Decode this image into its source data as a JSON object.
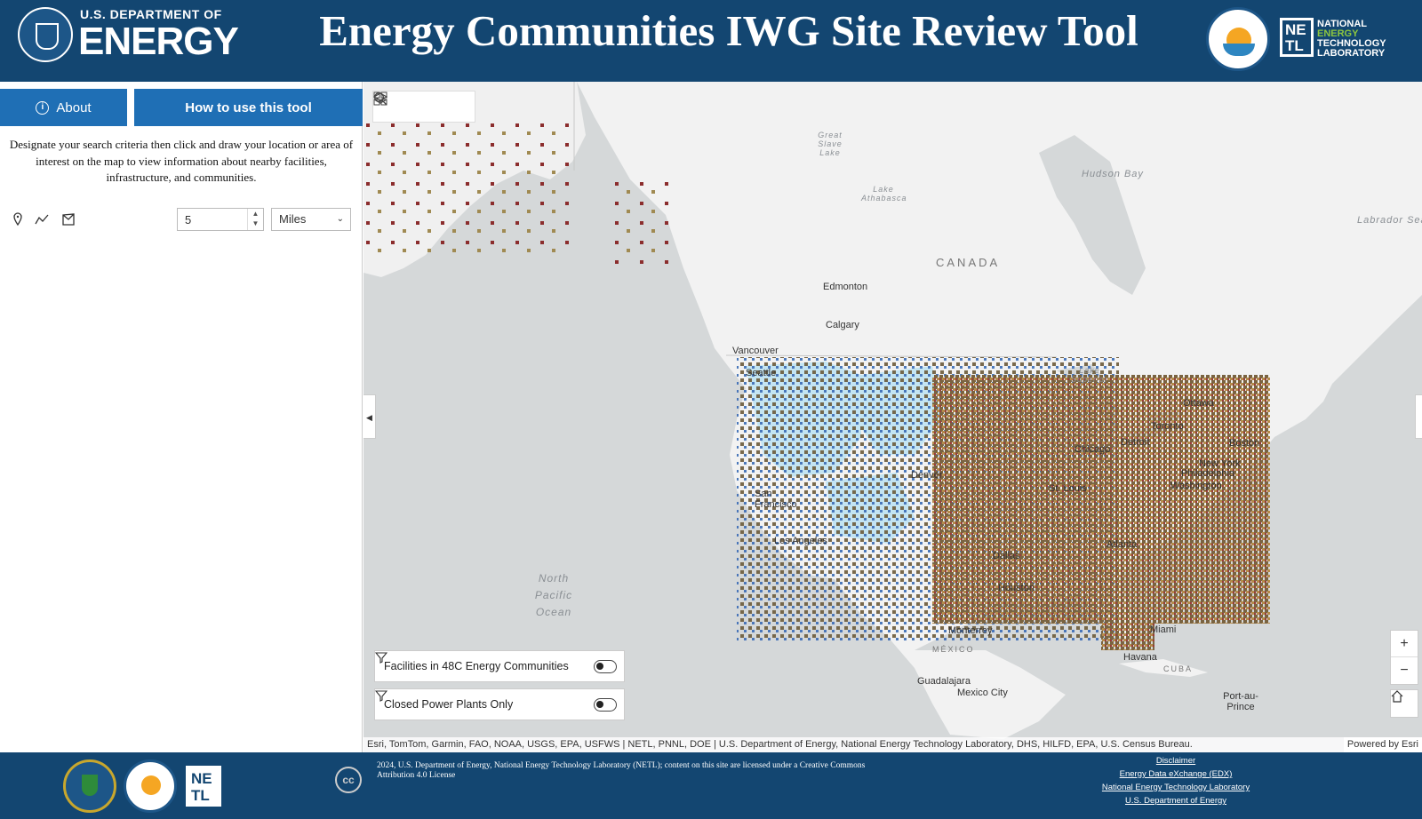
{
  "header": {
    "doe_small": "U.S. DEPARTMENT OF",
    "doe_big": "ENERGY",
    "title": "Energy Communities IWG Site Review Tool",
    "netl_lines": [
      "NATIONAL",
      "ENERGY",
      "TECHNOLOGY",
      "LABORATORY"
    ],
    "netl_box": "NETL"
  },
  "panel": {
    "about_label": "About",
    "howto_label": "How to use this tool",
    "instructions": "Designate your search criteria then click and draw your location or area of interest on the map to view information about nearby facilities, infrastructure, and communities.",
    "tools": [
      "point-draw-icon",
      "polyline-draw-icon",
      "polygon-draw-icon"
    ],
    "distance_value": "5",
    "unit_selected": "Miles"
  },
  "map": {
    "toolbar": [
      "search-icon",
      "layers-icon",
      "basemap-gallery-icon"
    ],
    "labels": {
      "canada": "CANADA",
      "mexico": "MÉXICO",
      "cuba": "CUBA",
      "hudson_bay": "Hudson Bay",
      "labrador_sea": "Labrador Sea",
      "north_pacific": "North Pacific Ocean",
      "great_slave_lake": "Great Slave Lake",
      "lake_athabasca": "Lake Athabasca",
      "lake_superior": "Lake Superior",
      "edmonton": "Edmonton",
      "calgary": "Calgary",
      "vancouver": "Vancouver",
      "seattle": "Seattle",
      "san_francisco": "San Francisco",
      "los_angeles": "Los Angeles",
      "denver": "Denver",
      "dallas": "Dallas",
      "houston": "Houston",
      "st_louis": "St. Louis",
      "chicago": "Chicago",
      "detroit": "Detroit",
      "toronto": "Toronto",
      "ottawa": "Ottawa",
      "boston": "Boston",
      "new_york": "New York",
      "philadelphia": "Philadelphia",
      "washington": "Washington",
      "atlanta": "Atlanta",
      "miami": "Miami",
      "havana": "Havana",
      "monterrey": "Monterrey",
      "guadalajara": "Guadalajara",
      "mexico_city": "Mexico City",
      "port_au_prince": "Port-au-Prince"
    },
    "toggle1_label": "Facilities in 48C Energy Communities",
    "toggle2_label": "Closed Power Plants Only",
    "zoom_in": "+",
    "zoom_out": "−",
    "attribution": "Esri, TomTom, Garmin, FAO, NOAA, USGS, EPA, USFWS | NETL, PNNL, DOE | U.S. Department of Energy, National Energy Technology Laboratory, DHS, HILFD, EPA, U.S. Census Bureau.",
    "powered_by": "Powered by Esri"
  },
  "footer": {
    "cc": "cc",
    "copyright": "2024, U.S. Department of Energy, National Energy Technology Laboratory (NETL); content on this site are licensed under a Creative Commons Attribution 4.0 License",
    "links": [
      "Disclaimer",
      "Energy Data eXchange (EDX)",
      "National Energy Technology Laboratory",
      "U.S. Department of Energy"
    ],
    "netl_box": "NETL"
  },
  "colors": {
    "header_bg": "#134671",
    "button_bg": "#1f6fb5",
    "land": "#f2f2f2",
    "water": "#d5d8d9",
    "community_fill": "#bfe3f2"
  }
}
